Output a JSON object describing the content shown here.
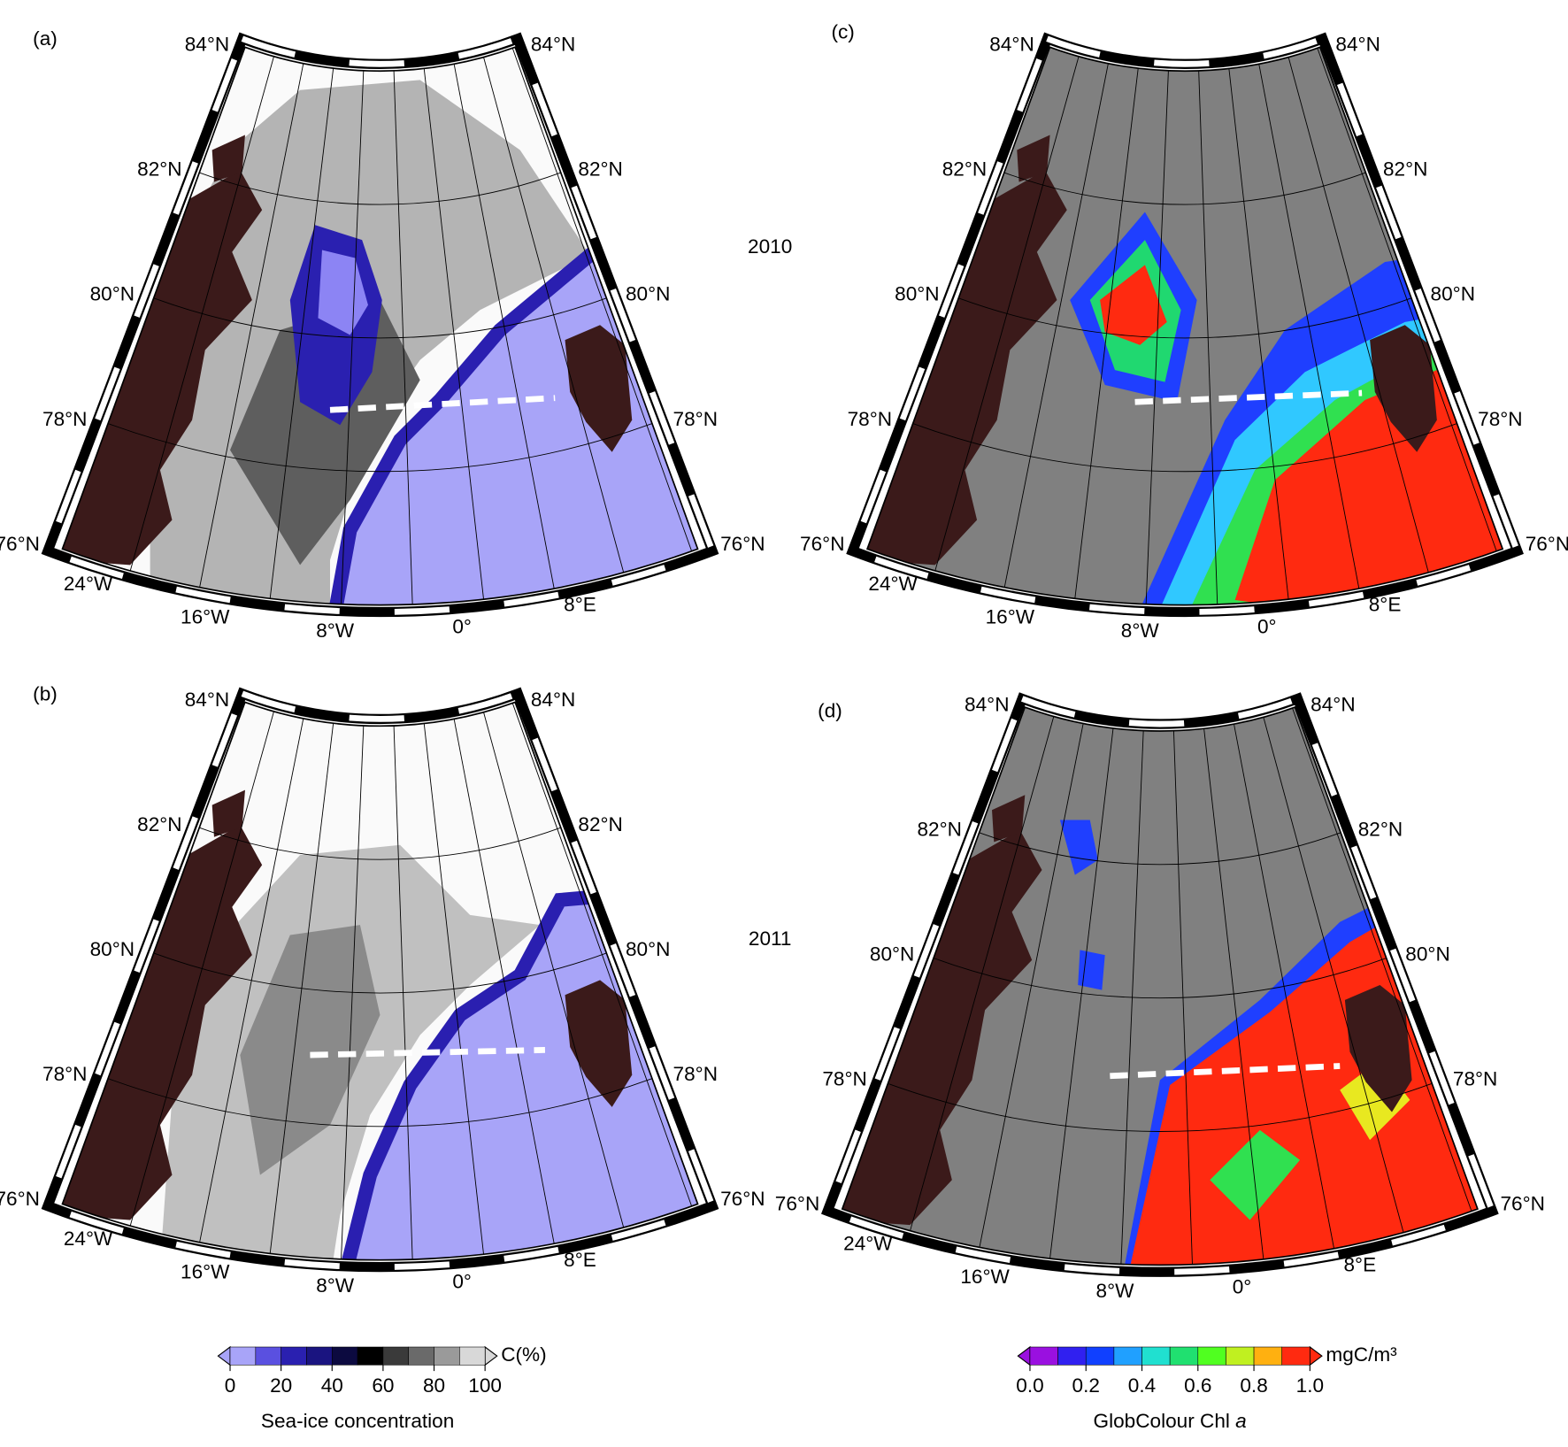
{
  "panels": [
    {
      "label": "(a)",
      "lat_left": [
        "84°N",
        "82°N",
        "80°N",
        "78°N",
        "76°N"
      ],
      "lat_right": [
        "84°N",
        "82°N",
        "80°N",
        "78°N",
        "76°N"
      ],
      "lon": [
        "24°W",
        "16°W",
        "8°W",
        "0°",
        "8°E"
      ]
    },
    {
      "label": "(b)",
      "lat_left": [
        "84°N",
        "82°N",
        "80°N",
        "78°N",
        "76°N"
      ],
      "lat_right": [
        "84°N",
        "82°N",
        "80°N",
        "78°N",
        "76°N"
      ],
      "lon": [
        "24°W",
        "16°W",
        "8°W",
        "0°",
        "8°E"
      ]
    },
    {
      "label": "(c)",
      "lat_left": [
        "84°N",
        "82°N",
        "80°N",
        "78°N",
        "76°N"
      ],
      "lat_right": [
        "84°N",
        "82°N",
        "80°N",
        "78°N",
        "76°N"
      ],
      "lon": [
        "24°W",
        "16°W",
        "8°W",
        "0°",
        "8°E"
      ]
    },
    {
      "label": "(d)",
      "lat_left": [
        "84°N",
        "82°N",
        "80°N",
        "78°N",
        "76°N"
      ],
      "lat_right": [
        "84°N",
        "82°N",
        "80°N",
        "78°N",
        "76°N"
      ],
      "lon": [
        "24°W",
        "16°W",
        "8°W",
        "0°",
        "8°E"
      ]
    }
  ],
  "years": [
    "2010",
    "2011"
  ],
  "colorbars": [
    {
      "ticks": [
        "0",
        "20",
        "40",
        "60",
        "80",
        "100"
      ],
      "unit": "C(%)",
      "title": "Sea-ice concentration"
    },
    {
      "ticks": [
        "0.0",
        "0.2",
        "0.4",
        "0.6",
        "0.8",
        "1.0"
      ],
      "unit": "mgC/m³",
      "title": "GlobColour Chl",
      "title_italic": "a"
    }
  ]
}
